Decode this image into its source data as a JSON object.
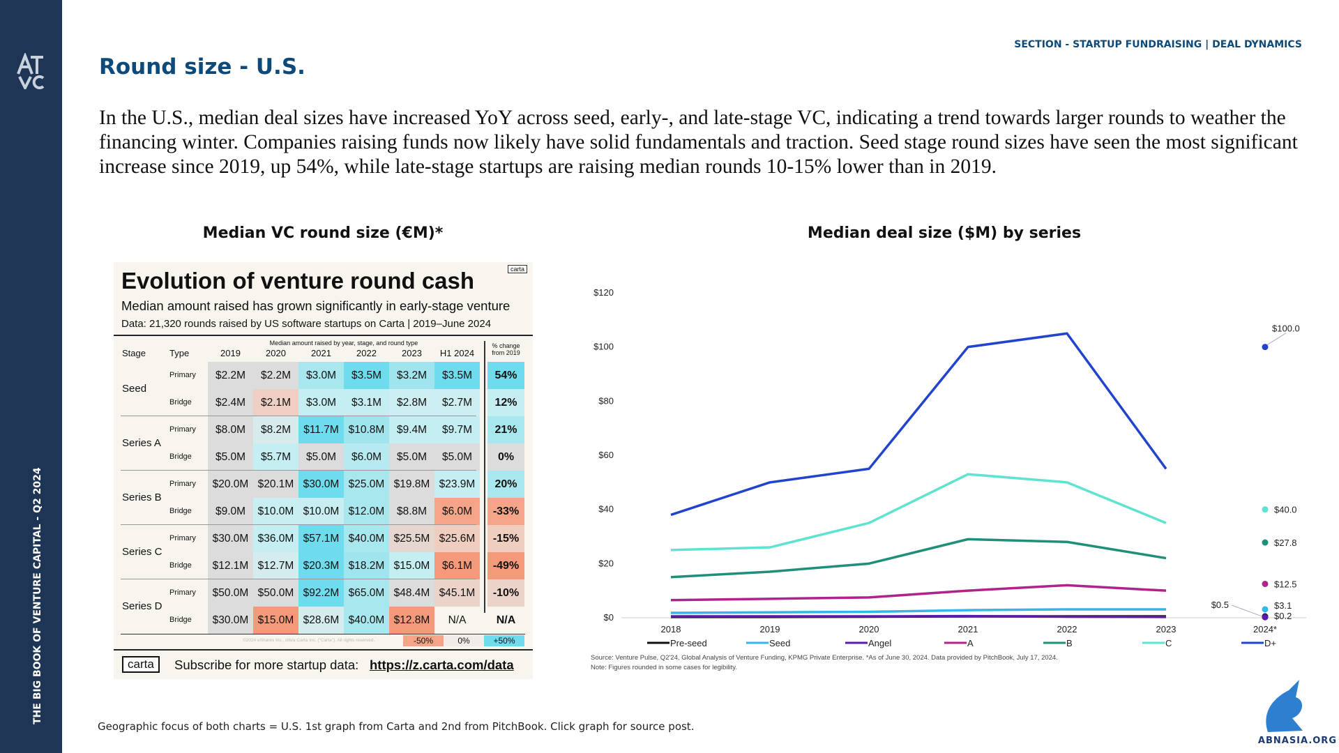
{
  "section": "SECTION - STARTUP FUNDRAISING | DEAL DYNAMICS",
  "title": "Round size - U.S.",
  "body": "In the U.S., median deal sizes have increased YoY across seed, early-, and late-stage VC, indicating a trend towards larger rounds to weather the financing winter. Companies raising funds now likely have solid fundamentals and traction. Seed stage round sizes have seen the most significant increase since 2019, up 54%, while late-stage startups are raising median rounds 10-15% lower than in 2019.",
  "left_caption": "Median VC round size (€M)*",
  "sidebar": "THE BIG BOOK OF VENTURE CAPITAL - Q2 2024",
  "footer": "Geographic focus of both charts = U.S. 1st graph from Carta and 2nd from PitchBook. Click graph for source post.",
  "watermark": "ABNASIA.ORG",
  "table": {
    "title": "Evolution of venture round cash",
    "subtitle": "Median amount raised has grown significantly in early-stage venture",
    "data_note": "Data: 21,320 rounds raised by US software startups on Carta | 2019–June 2024",
    "badge": "carta",
    "header_note": "Median amount raised by year, stage, and round type",
    "headers": [
      "Stage",
      "Type",
      "2019",
      "2020",
      "2021",
      "2022",
      "2023",
      "H1 2024",
      "% change from 2019"
    ],
    "groups": [
      {
        "stage": "Seed",
        "rows": [
          {
            "type": "Primary",
            "cells": [
              "$2.2M",
              "$2.2M",
              "$3.0M",
              "$3.5M",
              "$3.2M",
              "$3.5M",
              "54%"
            ],
            "colors": [
              "#dcdcdc",
              "#dcdcdc",
              "#a9e7ee",
              "#6edcec",
              "#a0e5ee",
              "#6edcec",
              "#6edcec"
            ]
          },
          {
            "type": "Bridge",
            "cells": [
              "$2.4M",
              "$2.1M",
              "$3.0M",
              "$3.1M",
              "$2.8M",
              "$2.7M",
              "12%"
            ],
            "colors": [
              "#dcdcdc",
              "#efcfc4",
              "#c4eef2",
              "#c4eef2",
              "#cdeff1",
              "#cdeff1",
              "#c4eef2"
            ]
          }
        ]
      },
      {
        "stage": "Series A",
        "rows": [
          {
            "type": "Primary",
            "cells": [
              "$8.0M",
              "$8.2M",
              "$11.7M",
              "$10.8M",
              "$9.4M",
              "$9.7M",
              "21%"
            ],
            "colors": [
              "#dcdcdc",
              "#d8ebec",
              "#6edcec",
              "#a0e5ee",
              "#c4eef2",
              "#c4eef2",
              "#a9e7ee"
            ]
          },
          {
            "type": "Bridge",
            "cells": [
              "$5.0M",
              "$5.7M",
              "$5.0M",
              "$6.0M",
              "$5.0M",
              "$5.0M",
              "0%"
            ],
            "colors": [
              "#dcdcdc",
              "#c4eef2",
              "#dcdcdc",
              "#b6eaf0",
              "#dcdcdc",
              "#dcdcdc",
              "#dcdcdc"
            ]
          }
        ]
      },
      {
        "stage": "Series B",
        "rows": [
          {
            "type": "Primary",
            "cells": [
              "$20.0M",
              "$20.1M",
              "$30.0M",
              "$25.0M",
              "$19.8M",
              "$23.9M",
              "20%"
            ],
            "colors": [
              "#dcdcdc",
              "#dcdcdc",
              "#6edcec",
              "#a9e7ee",
              "#dcdcdc",
              "#c4eef2",
              "#a9e7ee"
            ]
          },
          {
            "type": "Bridge",
            "cells": [
              "$9.0M",
              "$10.0M",
              "$10.0M",
              "$12.0M",
              "$8.8M",
              "$6.0M",
              "-33%"
            ],
            "colors": [
              "#dcdcdc",
              "#c9eef1",
              "#c9eef1",
              "#a9e7ee",
              "#dcdcdc",
              "#f4a587",
              "#f4a587"
            ]
          }
        ]
      },
      {
        "stage": "Series C",
        "rows": [
          {
            "type": "Primary",
            "cells": [
              "$30.0M",
              "$36.0M",
              "$57.1M",
              "$40.0M",
              "$25.5M",
              "$25.6M",
              "-15%"
            ],
            "colors": [
              "#dcdcdc",
              "#c4eef2",
              "#6edcec",
              "#a9e7ee",
              "#e6d6d0",
              "#efcdbf",
              "#efcdbf"
            ]
          },
          {
            "type": "Bridge",
            "cells": [
              "$12.1M",
              "$12.7M",
              "$20.3M",
              "$18.2M",
              "$15.0M",
              "$6.1M",
              "-49%"
            ],
            "colors": [
              "#dcdcdc",
              "#d5ecee",
              "#6edcec",
              "#a0e5ee",
              "#c4eef2",
              "#f49a7a",
              "#f49a7a"
            ]
          }
        ]
      },
      {
        "stage": "Series D",
        "rows": [
          {
            "type": "Primary",
            "cells": [
              "$50.0M",
              "$50.0M",
              "$92.2M",
              "$65.0M",
              "$48.4M",
              "$45.1M",
              "-10%"
            ],
            "colors": [
              "#dcdcdc",
              "#dcdcdc",
              "#6edcec",
              "#a9e7ee",
              "#dcdcdc",
              "#ecd3ca",
              "#ecd3ca"
            ]
          },
          {
            "type": "Bridge",
            "cells": [
              "$30.0M",
              "$15.0M",
              "$28.6M",
              "$40.0M",
              "$12.8M",
              "N/A",
              "N/A"
            ],
            "colors": [
              "#dcdcdc",
              "#f49a7a",
              "#d5ecee",
              "#a9e7ee",
              "#f49a7a",
              "#f8f5ee",
              "#f8f5ee"
            ]
          }
        ]
      }
    ],
    "copyright": "©2024 eShares Inc., d/b/a Carta Inc. (\"Carta\"). All rights reserved.",
    "scale": [
      "-50%",
      "0%",
      "+50%"
    ],
    "logo": "carta",
    "subscribe": "Subscribe for more startup data:",
    "link": "https://z.carta.com/data"
  },
  "chart_data": {
    "type": "line",
    "title": "Median deal size ($M) by series",
    "categories": [
      "2018",
      "2019",
      "2020",
      "2021",
      "2022",
      "2023",
      "2024*"
    ],
    "ylim": [
      0,
      120
    ],
    "yticks": [
      {
        "value": 0,
        "label": "$0"
      },
      {
        "value": 20,
        "label": "$20"
      },
      {
        "value": 40,
        "label": "$40"
      },
      {
        "value": 60,
        "label": "$60"
      },
      {
        "value": 80,
        "label": "$80"
      },
      {
        "value": 100,
        "label": "$100"
      },
      {
        "value": 120,
        "label": "$120"
      }
    ],
    "series": [
      {
        "name": "Pre-seed",
        "color": "#111111",
        "values": [
          0.3,
          0.3,
          0.4,
          0.5,
          0.5,
          0.5,
          0.5
        ],
        "value_labels": [
          null,
          null,
          null,
          null,
          null,
          null,
          "$0.5"
        ]
      },
      {
        "name": "Seed",
        "color": "#35b6e6",
        "values": [
          1.8,
          2,
          2.2,
          2.8,
          3.1,
          3.1,
          3.1
        ],
        "value_labels": [
          null,
          null,
          null,
          null,
          null,
          null,
          "$3.1"
        ]
      },
      {
        "name": "Angel",
        "color": "#5b1aa8",
        "values": [
          0.5,
          0.5,
          0.5,
          0.6,
          0.4,
          0.3,
          0.2
        ],
        "value_labels": [
          null,
          null,
          null,
          null,
          null,
          null,
          "$0.2"
        ]
      },
      {
        "name": "A",
        "color": "#b0238a",
        "values": [
          6.5,
          7,
          7.5,
          10,
          12,
          10,
          12.5
        ],
        "value_labels": [
          null,
          null,
          null,
          null,
          null,
          null,
          "$12.5"
        ]
      },
      {
        "name": "B",
        "color": "#1f8f7a",
        "values": [
          15,
          17,
          20,
          29,
          28,
          22,
          27.8
        ],
        "value_labels": [
          null,
          null,
          null,
          null,
          null,
          null,
          "$27.8"
        ]
      },
      {
        "name": "C",
        "color": "#5ee3d0",
        "values": [
          25,
          26,
          35,
          53,
          50,
          35,
          40.0
        ],
        "value_labels": [
          null,
          null,
          null,
          null,
          null,
          null,
          "$40.0"
        ]
      },
      {
        "name": "D+",
        "color": "#2244cc",
        "values": [
          38,
          50,
          55,
          100,
          105,
          55,
          100.0
        ],
        "value_labels": [
          null,
          null,
          null,
          null,
          null,
          null,
          "$100.0"
        ]
      }
    ],
    "notes": [
      "Source: Venture Pulse, Q2'24, Global Analysis of Venture Funding, KPMG Private Enterprise. *As of June 30, 2024. Data provided by PitchBook, July 17, 2024.",
      "Note: Figures rounded in some cases for legibility."
    ]
  }
}
